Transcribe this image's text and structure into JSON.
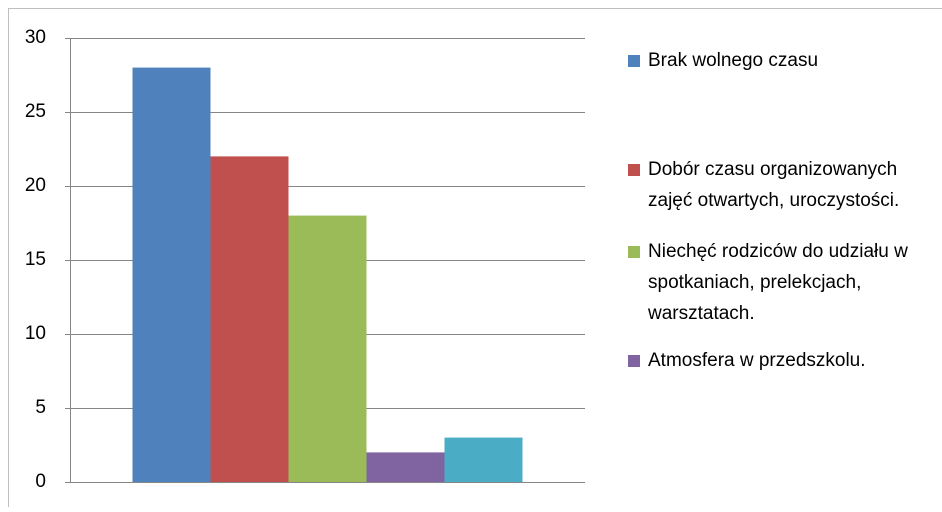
{
  "chart_data": {
    "type": "bar",
    "categories": [
      null
    ],
    "series": [
      {
        "name": "Brak wolnego czasu",
        "color": "#4f81bd",
        "values": [
          28
        ]
      },
      {
        "name": "Dobór czasu organizowanych zajęć otwartych, uroczystości.",
        "color": "#c0504d",
        "values": [
          22
        ]
      },
      {
        "name": "Niechęć rodziców do udziału w spotkaniach, prelekcjach, warsztatach.",
        "color": "#9bbb59",
        "values": [
          18
        ]
      },
      {
        "name": "Atmosfera w przedszkolu.",
        "color": "#8064a2",
        "values": [
          2
        ]
      },
      {
        "color": "#4bacc6",
        "values": [
          3
        ]
      }
    ],
    "ylim": [
      0,
      30
    ],
    "yticks": [
      0,
      5,
      10,
      15,
      20,
      25,
      30
    ],
    "grid": true,
    "legend": "right"
  }
}
